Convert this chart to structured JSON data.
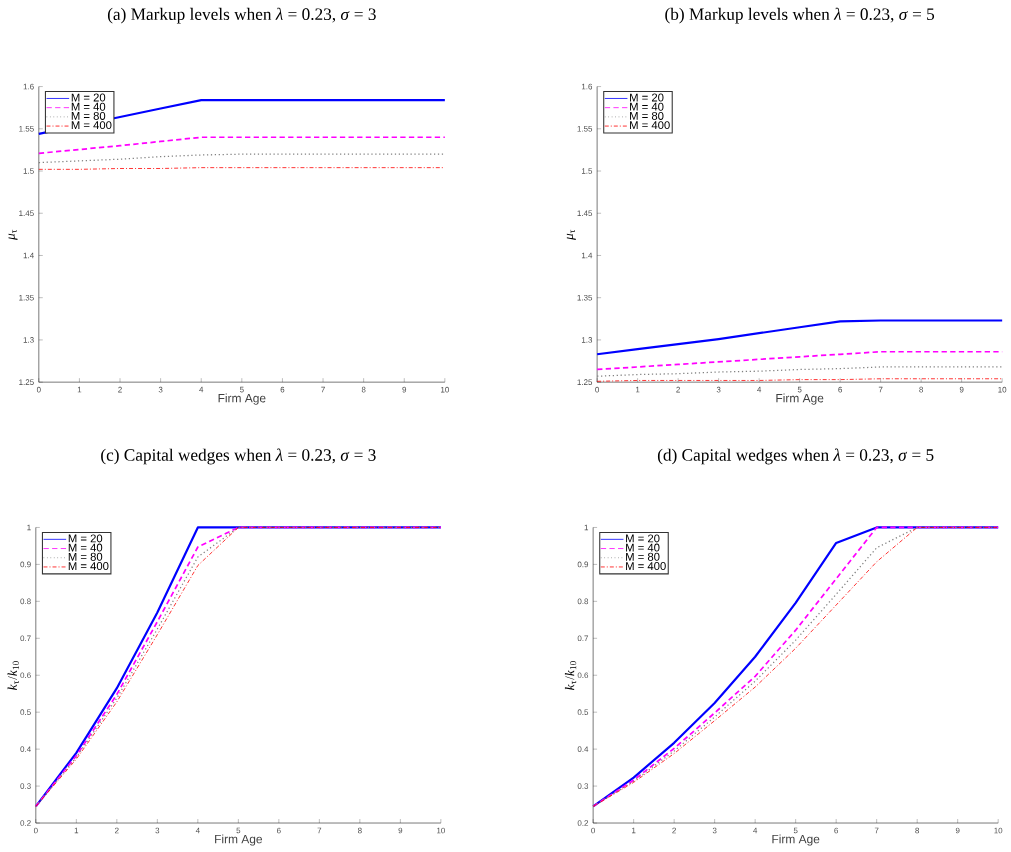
{
  "chart_data": [
    {
      "type": "line",
      "title": "(a) Markup levels when *λ* = 0.23, *σ* = 3",
      "xlabel": "Firm Age",
      "ylabel": "*μ*$_{τ}$",
      "legend": "top left",
      "x": [
        0,
        1,
        2,
        3,
        4,
        5,
        6,
        7,
        8,
        9,
        10
      ],
      "xlim": [
        0,
        10
      ],
      "xticks": [
        0,
        1,
        2,
        3,
        4,
        5,
        6,
        7,
        8,
        9,
        10
      ],
      "ylim": [
        1.25,
        1.6
      ],
      "yticks": [
        1.25,
        1.3,
        1.35,
        1.4,
        1.45,
        1.5,
        1.55,
        1.6
      ],
      "series": [
        {
          "name": "M = 20",
          "color": "#0000ff",
          "line_style": "solid",
          "values": [
            1.544,
            null,
            1.564,
            1.574,
            1.584,
            1.584,
            1.584,
            1.584,
            1.584,
            1.584,
            1.584
          ]
        },
        {
          "name": "M = 40",
          "color": "#ff00ff",
          "line_style": "dashed",
          "values": [
            1.521,
            null,
            1.53,
            1.535,
            1.54,
            1.54,
            1.54,
            1.54,
            1.54,
            1.54,
            1.54
          ]
        },
        {
          "name": "M = 80",
          "color": "#808080",
          "line_style": "dotted",
          "values": [
            1.51,
            1.512,
            1.514,
            1.517,
            1.519,
            1.52,
            1.52,
            1.52,
            1.52,
            1.52,
            1.52
          ]
        },
        {
          "name": "M = 400",
          "color": "#ff0000",
          "line_style": "dashdot",
          "values": [
            1.502,
            1.502,
            1.503,
            1.503,
            1.504,
            1.504,
            1.504,
            1.504,
            1.504,
            1.504,
            1.504
          ]
        }
      ]
    },
    {
      "type": "line",
      "title": "(b) Markup levels when *λ* = 0.23, *σ* = 5",
      "xlabel": "Firm Age",
      "ylabel": "*μ*$_{τ}$",
      "legend": "top left",
      "x": [
        0,
        1,
        2,
        3,
        4,
        5,
        6,
        7,
        8,
        9,
        10
      ],
      "xlim": [
        0,
        10
      ],
      "xticks": [
        0,
        1,
        2,
        3,
        4,
        5,
        6,
        7,
        8,
        9,
        10
      ],
      "ylim": [
        1.25,
        1.6
      ],
      "yticks": [
        1.25,
        1.3,
        1.35,
        1.4,
        1.45,
        1.5,
        1.55,
        1.6
      ],
      "series": [
        {
          "name": "M = 20",
          "color": "#0000ff",
          "line_style": "solid",
          "values": [
            1.283,
            1.289,
            1.295,
            1.301,
            1.308,
            1.315,
            1.322,
            1.323,
            1.323,
            1.323,
            1.323
          ]
        },
        {
          "name": "M = 40",
          "color": "#ff00ff",
          "line_style": "dashed",
          "values": [
            1.265,
            1.268,
            1.271,
            1.274,
            1.277,
            1.28,
            1.283,
            1.286,
            1.286,
            1.286,
            1.286
          ]
        },
        {
          "name": "M = 80",
          "color": "#808080",
          "line_style": "dotted",
          "values": [
            1.257,
            1.259,
            1.26,
            1.262,
            1.263,
            1.265,
            1.266,
            1.268,
            1.268,
            1.268,
            1.268
          ]
        },
        {
          "name": "M = 400",
          "color": "#ff0000",
          "line_style": "dashdot",
          "values": [
            1.251,
            1.252,
            1.252,
            1.252,
            1.252,
            1.253,
            1.253,
            1.254,
            1.254,
            1.254,
            1.254
          ]
        }
      ]
    },
    {
      "type": "line",
      "title": "(c) Capital wedges when *λ* = 0.23, *σ* = 3",
      "xlabel": "Firm Age",
      "ylabel": "*k*$_{τ}$/*k*$_{10}$",
      "legend": "top left",
      "x": [
        0,
        1,
        2,
        3,
        4,
        5,
        6,
        7,
        8,
        9,
        10
      ],
      "xlim": [
        0,
        10
      ],
      "xticks": [
        0,
        1,
        2,
        3,
        4,
        5,
        6,
        7,
        8,
        9,
        10
      ],
      "ylim": [
        0.2,
        1
      ],
      "yticks": [
        0.2,
        0.3,
        0.4,
        0.5,
        0.6,
        0.7,
        0.8,
        0.9,
        1
      ],
      "series": [
        {
          "name": "M = 20",
          "color": "#0000ff",
          "line_style": "solid",
          "values": [
            0.245,
            0.39,
            0.565,
            0.77,
            1.0,
            1.0,
            1.0,
            1.0,
            1.0,
            1.0,
            1.0
          ]
        },
        {
          "name": "M = 40",
          "color": "#ff00ff",
          "line_style": "dashed",
          "values": [
            0.245,
            0.382,
            0.548,
            0.745,
            0.947,
            1.0,
            1.0,
            1.0,
            1.0,
            1.0,
            1.0
          ]
        },
        {
          "name": "M = 80",
          "color": "#808080",
          "line_style": "dotted",
          "values": [
            0.245,
            0.378,
            0.538,
            0.725,
            0.92,
            1.0,
            1.0,
            1.0,
            1.0,
            1.0,
            1.0
          ]
        },
        {
          "name": "M = 400",
          "color": "#ff0000",
          "line_style": "dashdot",
          "values": [
            0.245,
            0.373,
            0.528,
            0.71,
            0.897,
            1.0,
            1.0,
            1.0,
            1.0,
            1.0,
            1.0
          ]
        }
      ]
    },
    {
      "type": "line",
      "title": "(d) Capital wedges when *λ* = 0.23, *σ* = 5",
      "xlabel": "Firm Age",
      "ylabel": "*k*$_{τ}$/*k*$_{10}$",
      "legend": "top left",
      "x": [
        0,
        1,
        2,
        3,
        4,
        5,
        6,
        7,
        8,
        9,
        10
      ],
      "xlim": [
        0,
        10
      ],
      "xticks": [
        0,
        1,
        2,
        3,
        4,
        5,
        6,
        7,
        8,
        9,
        10
      ],
      "ylim": [
        0.2,
        1
      ],
      "yticks": [
        0.2,
        0.3,
        0.4,
        0.5,
        0.6,
        0.7,
        0.8,
        0.9,
        1
      ],
      "series": [
        {
          "name": "M = 20",
          "color": "#0000ff",
          "line_style": "solid",
          "values": [
            0.245,
            0.323,
            0.417,
            0.525,
            0.65,
            0.796,
            0.958,
            1.0,
            1.0,
            1.0,
            1.0
          ]
        },
        {
          "name": "M = 40",
          "color": "#ff00ff",
          "line_style": "dashed",
          "values": [
            0.245,
            0.316,
            0.402,
            0.498,
            0.597,
            0.722,
            0.861,
            1.0,
            1.0,
            1.0,
            1.0
          ]
        },
        {
          "name": "M = 80",
          "color": "#808080",
          "line_style": "dotted",
          "values": [
            0.245,
            0.313,
            0.395,
            0.487,
            0.584,
            0.695,
            0.819,
            0.945,
            1.0,
            1.0,
            1.0
          ]
        },
        {
          "name": "M = 400",
          "color": "#ff0000",
          "line_style": "dashdot",
          "values": [
            0.245,
            0.31,
            0.388,
            0.477,
            0.568,
            0.673,
            0.79,
            0.907,
            1.0,
            1.0,
            1.0
          ]
        }
      ]
    }
  ]
}
